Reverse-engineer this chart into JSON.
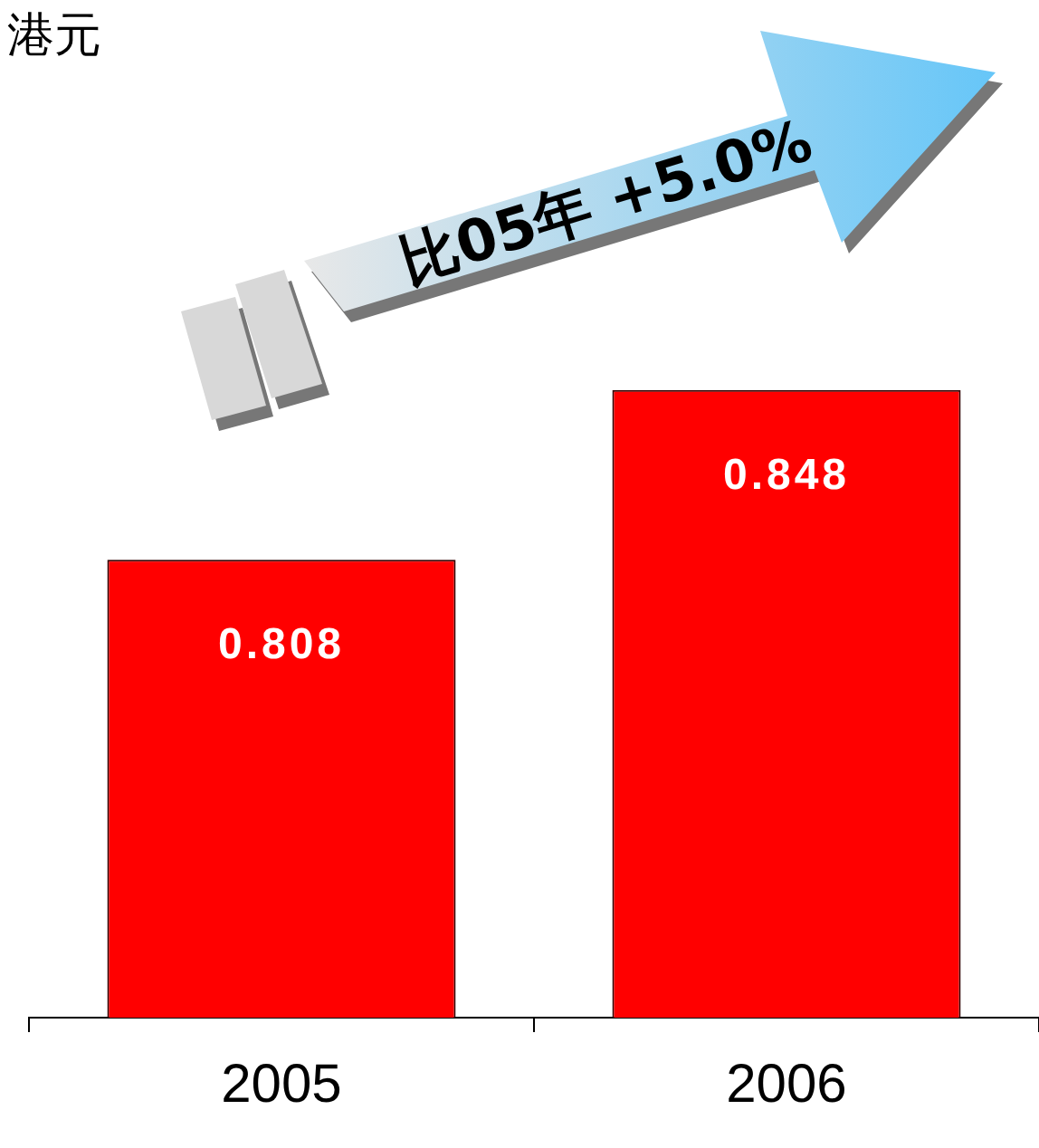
{
  "chart_data": {
    "type": "bar",
    "title": "港元",
    "categories": [
      "2005",
      "2006"
    ],
    "values": [
      0.808,
      0.848
    ],
    "color": "#ff0000",
    "ylim": [
      0.7,
      0.94
    ],
    "data_labels": true,
    "grid": false,
    "legend": false,
    "tick_labels": "x",
    "annotations": [
      "比05年 +5.0%"
    ]
  }
}
